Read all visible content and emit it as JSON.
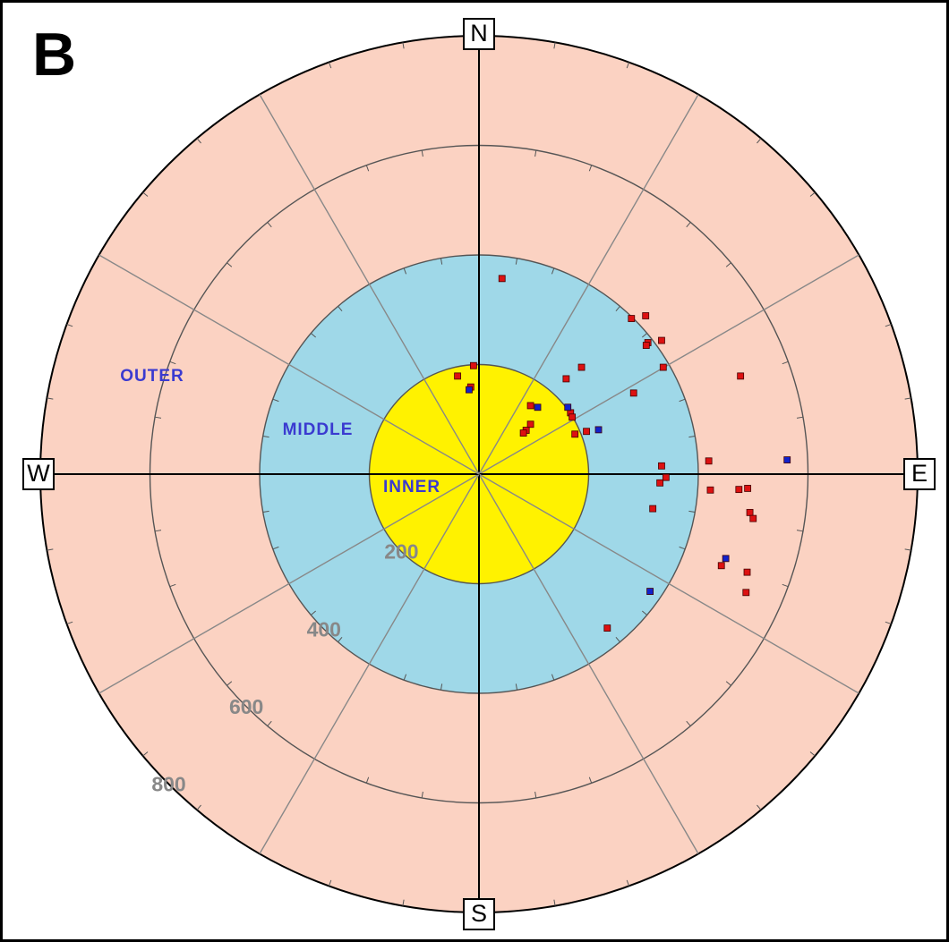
{
  "chart_data": {
    "type": "polar-scatter",
    "panel_label": "B",
    "directions": [
      "N",
      "E",
      "S",
      "W"
    ],
    "rlim": [
      0,
      800
    ],
    "rticks": [
      200,
      400,
      600,
      800
    ],
    "zones": [
      {
        "label": "INNER",
        "to": 200,
        "color": "#fff200"
      },
      {
        "label": "MIDDLE",
        "to": 400,
        "color": "#9fd8e8"
      },
      {
        "label": "OUTER",
        "to": 800,
        "color": "#fbd2c2"
      }
    ],
    "series": [
      {
        "color": "#dd1111",
        "x": [
          42,
          278,
          304,
          308,
          333,
          305,
          336,
          187,
          159,
          282,
          477,
          -39,
          -10,
          -15,
          94,
          167,
          170,
          94,
          86,
          81,
          196,
          175,
          419,
          333,
          341,
          330,
          422,
          474,
          490,
          317,
          494,
          500,
          442,
          489,
          487,
          234
        ],
        "y": [
          357,
          284,
          289,
          240,
          244,
          235,
          195,
          195,
          174,
          148,
          179,
          179,
          198,
          159,
          125,
          112,
          104,
          91,
          80,
          75,
          78,
          73,
          24,
          15,
          -6,
          -16,
          -29,
          -28,
          -26,
          -63,
          -70,
          -81,
          -167,
          -179,
          -216,
          -281
        ]
      },
      {
        "color": "#1122cc",
        "x": [
          -18,
          107,
          162,
          218,
          562,
          450,
          312
        ],
        "y": [
          154,
          122,
          122,
          81,
          26,
          -154,
          -214
        ]
      }
    ]
  }
}
